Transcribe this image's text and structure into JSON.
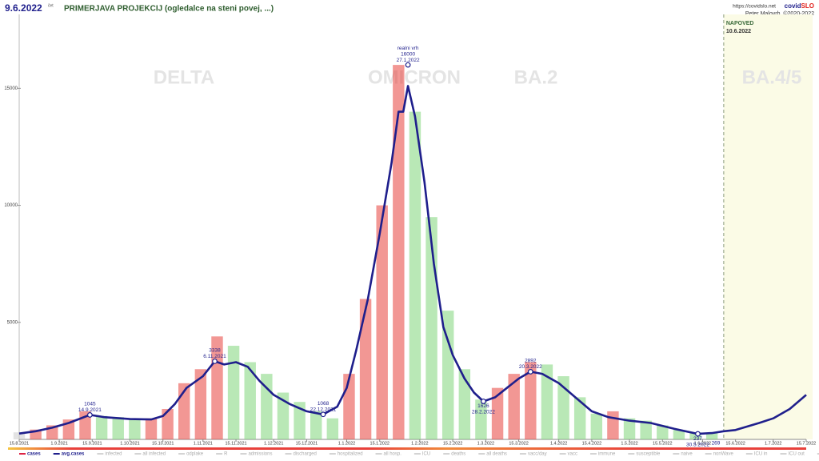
{
  "chart_data": {
    "type": "line",
    "date": "9.6.2022",
    "weekday": "čet",
    "title": "PRIMERJAVA PROJEKCIJ (ogledalce na steni povej, ...)",
    "url": "https://covidslo.net",
    "brand": [
      "covid",
      "SLO"
    ],
    "author": "Peter Malovrh, ©2020-2022",
    "forecast_label": "NAPOVED",
    "forecast_start": "10.6.2022",
    "waves": [
      "DELTA",
      "OMICRON",
      "BA.2",
      "BA.4/5"
    ],
    "xlim": [
      "15.8.2021",
      "15.7.2022"
    ],
    "xticks": [
      "15.8.2021",
      "1.9.2021",
      "15.9.2021",
      "1.10.2021",
      "15.10.2021",
      "1.11.2021",
      "15.11.2021",
      "1.12.2021",
      "15.12.2021",
      "1.1.2022",
      "15.1.2022",
      "1.2.2022",
      "15.2.2022",
      "1.3.2022",
      "15.3.2022",
      "1.4.2022",
      "15.4.2022",
      "1.5.2022",
      "15.5.2022",
      "1.6.2022",
      "15.6.2022",
      "1.7.2022",
      "15.7.2022"
    ],
    "ylim": [
      0,
      18500
    ],
    "yticks": [
      5000,
      10000,
      15000
    ],
    "grid": false,
    "bars": {
      "name": "cases",
      "rise_color": "#e8413c",
      "fall_color": "#7fd67a",
      "first_color": "#cccccc",
      "x": [
        "15.8.2021",
        "22.8.2021",
        "29.8.2021",
        "5.9.2021",
        "12.9.2021",
        "19.9.2021",
        "26.9.2021",
        "3.10.2021",
        "10.10.2021",
        "17.10.2021",
        "24.10.2021",
        "31.10.2021",
        "7.11.2021",
        "14.11.2021",
        "21.11.2021",
        "28.11.2021",
        "5.12.2021",
        "12.12.2021",
        "19.12.2021",
        "26.12.2021",
        "2.1.2022",
        "9.1.2022",
        "16.1.2022",
        "23.1.2022",
        "30.1.2022",
        "6.2.2022",
        "13.2.2022",
        "20.2.2022",
        "27.2.2022",
        "6.3.2022",
        "13.3.2022",
        "20.3.2022",
        "27.3.2022",
        "3.4.2022",
        "10.4.2022",
        "17.4.2022",
        "24.4.2022",
        "1.5.2022",
        "8.5.2022",
        "15.5.2022",
        "22.5.2022",
        "29.5.2022",
        "5.6.2022"
      ],
      "values": [
        300,
        420,
        600,
        850,
        1200,
        1000,
        950,
        900,
        900,
        1300,
        2400,
        3000,
        4400,
        4000,
        3300,
        2800,
        2000,
        1600,
        1200,
        900,
        2800,
        6000,
        10000,
        16000,
        14000,
        9500,
        5500,
        3000,
        1700,
        2200,
        2800,
        3300,
        3200,
        2700,
        1800,
        1100,
        1200,
        900,
        800,
        600,
        400,
        300,
        280
      ]
    },
    "series": [
      {
        "name": "avg.cases",
        "color": "#1f1f8c",
        "x": [
          "15.8.2021",
          "22.8.2021",
          "29.8.2021",
          "5.9.2021",
          "14.9.2021",
          "20.9.2021",
          "1.10.2021",
          "10.10.2021",
          "15.10.2021",
          "20.10.2021",
          "25.10.2021",
          "1.11.2021",
          "6.11.2021",
          "10.11.2021",
          "15.11.2021",
          "20.11.2021",
          "25.11.2021",
          "1.12.2021",
          "8.12.2021",
          "15.12.2021",
          "22.12.2021",
          "28.12.2021",
          "1.1.2022",
          "5.1.2022",
          "10.1.2022",
          "15.1.2022",
          "20.1.2022",
          "23.1.2022",
          "25.1.2022",
          "27.1.2022",
          "30.1.2022",
          "3.2.2022",
          "7.2.2022",
          "11.2.2022",
          "15.2.2022",
          "20.2.2022",
          "24.2.2022",
          "28.2.2022",
          "5.3.2022",
          "10.3.2022",
          "15.3.2022",
          "20.3.2022",
          "25.3.2022",
          "1.4.2022",
          "8.4.2022",
          "15.4.2022",
          "22.4.2022",
          "1.5.2022",
          "10.5.2022",
          "20.5.2022",
          "30.5.2022",
          "5.6.2022",
          "10.6.2022",
          "15.6.2022",
          "25.6.2022",
          "1.7.2022",
          "8.7.2022",
          "15.7.2022"
        ],
        "values": [
          250,
          350,
          500,
          700,
          1045,
          950,
          870,
          850,
          1000,
          1500,
          2200,
          2700,
          3338,
          3200,
          3300,
          3100,
          2500,
          1900,
          1500,
          1200,
          1068,
          1400,
          2200,
          3800,
          6000,
          8800,
          11800,
          14000,
          14000,
          15100,
          13800,
          11000,
          7500,
          4800,
          3600,
          2600,
          2000,
          1626,
          1800,
          2200,
          2600,
          2892,
          2800,
          2400,
          1800,
          1200,
          950,
          800,
          700,
          450,
          237,
          269,
          350,
          400,
          700,
          900,
          1300,
          1900
        ]
      }
    ],
    "annotations": [
      {
        "y": 1045,
        "x": "14.9.2021"
      },
      {
        "y": 3338,
        "x": "6.11.2021"
      },
      {
        "y": 1068,
        "x": "22.12.2021"
      },
      {
        "text": "realni vrh",
        "y": 16000,
        "x": "27.1.2022"
      },
      {
        "y": 1626,
        "x": "28.2.2022"
      },
      {
        "y": 2892,
        "x": "20.3.2022"
      },
      {
        "y": 237,
        "x": "30.5.2022"
      },
      {
        "y": 269
      }
    ],
    "legend": [
      "cases",
      "avg.cases",
      "infected",
      "all infected",
      "odplake",
      "R",
      "admissions",
      "discharged",
      "hospitalized",
      "all hosp.",
      "ICU",
      "deaths",
      "all deaths",
      "vacc/day",
      "vacc",
      "immune",
      "susceptible",
      "naive",
      "nonWave",
      "ICU in",
      "ICU out",
      "ICU deaths",
      "all ICU"
    ]
  }
}
